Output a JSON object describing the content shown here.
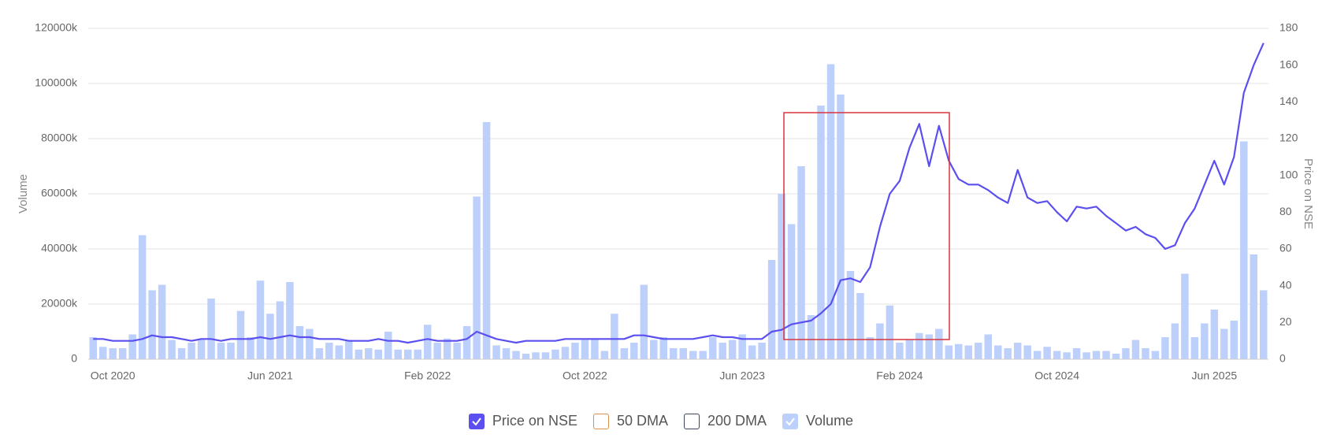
{
  "chart_data": {
    "type": "bar-line",
    "categories": [
      null,
      null,
      "Oct 2020",
      null,
      null,
      null,
      null,
      null,
      null,
      null,
      null,
      null,
      null,
      null,
      null,
      null,
      null,
      null,
      "Jun 2021",
      null,
      null,
      null,
      null,
      null,
      null,
      null,
      null,
      null,
      null,
      null,
      null,
      null,
      null,
      null,
      "Feb 2022",
      null,
      null,
      null,
      null,
      null,
      null,
      null,
      null,
      null,
      null,
      null,
      null,
      null,
      null,
      null,
      "Oct 2022",
      null,
      null,
      null,
      null,
      null,
      null,
      null,
      null,
      null,
      null,
      null,
      null,
      null,
      null,
      null,
      "Jun 2023",
      null,
      null,
      null,
      null,
      null,
      null,
      null,
      null,
      null,
      null,
      null,
      null,
      null,
      null,
      null,
      "Feb 2024",
      null,
      null,
      null,
      null,
      null,
      null,
      null,
      null,
      null,
      null,
      null,
      null,
      null,
      null,
      null,
      "Oct 2024",
      null,
      null,
      null,
      null,
      null,
      null,
      null,
      null,
      null,
      null,
      null,
      null,
      null,
      null,
      null,
      "Jun 2025",
      null,
      null,
      null,
      null,
      null
    ],
    "series": [
      {
        "name": "Price on NSE",
        "type": "line",
        "axis": "y2",
        "color": "#5b4ff0",
        "checked": true,
        "values": [
          11,
          11,
          10,
          10,
          10,
          11,
          13,
          12,
          12,
          11,
          10,
          11,
          11,
          10,
          11,
          11,
          11,
          12,
          11,
          12,
          13,
          12,
          12,
          11,
          11,
          11,
          10,
          10,
          10,
          11,
          10,
          10,
          9,
          10,
          11,
          10,
          10,
          10,
          11,
          15,
          13,
          11,
          10,
          9,
          10,
          10,
          10,
          10,
          11,
          11,
          11,
          11,
          11,
          11,
          11,
          13,
          13,
          12,
          11,
          11,
          11,
          11,
          12,
          13,
          12,
          12,
          11,
          11,
          11,
          15,
          16,
          19,
          20,
          21,
          25,
          30,
          43,
          44,
          42,
          50,
          72,
          90,
          97,
          115,
          128,
          105,
          127,
          108,
          98,
          95,
          95,
          92,
          88,
          85,
          103,
          88,
          85,
          86,
          80,
          75,
          83,
          82,
          83,
          78,
          74,
          70,
          72,
          68,
          66,
          60,
          62,
          74,
          82,
          95,
          108,
          95,
          110,
          145,
          160,
          172
        ]
      },
      {
        "name": "Volume",
        "type": "bar",
        "axis": "y",
        "color": "#bcd0fb",
        "checked": true,
        "values": [
          8000,
          4500,
          4000,
          4000,
          9000,
          45000,
          25000,
          27000,
          7000,
          4000,
          6000,
          7000,
          22000,
          6000,
          6000,
          17500,
          8000,
          28500,
          16500,
          21000,
          28000,
          12000,
          11000,
          4000,
          6000,
          5000,
          7000,
          3500,
          4000,
          3500,
          10000,
          3500,
          3500,
          3500,
          12500,
          6000,
          7500,
          6000,
          12000,
          59000,
          86000,
          5000,
          4000,
          3000,
          2000,
          2500,
          2500,
          3500,
          4500,
          6000,
          7000,
          7500,
          3000,
          16500,
          4000,
          6000,
          27000,
          7000,
          8000,
          4000,
          4000,
          3000,
          3000,
          8000,
          6000,
          7000,
          9000,
          5000,
          6000,
          36000,
          60000,
          49000,
          70000,
          16000,
          92000,
          107000,
          96000,
          32000,
          24000,
          8000,
          13000,
          19500,
          6000,
          7000,
          9500,
          9000,
          11000,
          5000,
          5500,
          5000,
          6000,
          9000,
          5000,
          4000,
          6000,
          5000,
          3000,
          4500,
          3000,
          2500,
          4000,
          2500,
          3000,
          3000,
          2000,
          4000,
          7000,
          4000,
          3000,
          8000,
          13000,
          31000,
          8000,
          13000,
          18000,
          11000,
          14000,
          79000,
          38000,
          25000
        ]
      }
    ],
    "extra_legend": [
      {
        "name": "50 DMA",
        "color": "#d9904a",
        "checked": false
      },
      {
        "name": "200 DMA",
        "color": "#3d4660",
        "checked": false
      }
    ],
    "y_label": "Volume",
    "y2_label": "Price on NSE",
    "ylim": [
      0,
      120000
    ],
    "yticks": [
      0,
      {
        "value": 20000,
        "label": "20000k"
      },
      {
        "value": 40000,
        "label": "40000k"
      },
      {
        "value": 60000,
        "label": "60000k"
      },
      {
        "value": 80000,
        "label": "80000k"
      },
      {
        "value": 100000,
        "label": "100000k"
      },
      {
        "value": 120000,
        "label": "120000k"
      }
    ],
    "y2lim": [
      0,
      180
    ],
    "y2ticks": [
      0,
      20,
      40,
      60,
      80,
      100,
      120,
      140,
      160,
      180
    ],
    "grid": true
  }
}
